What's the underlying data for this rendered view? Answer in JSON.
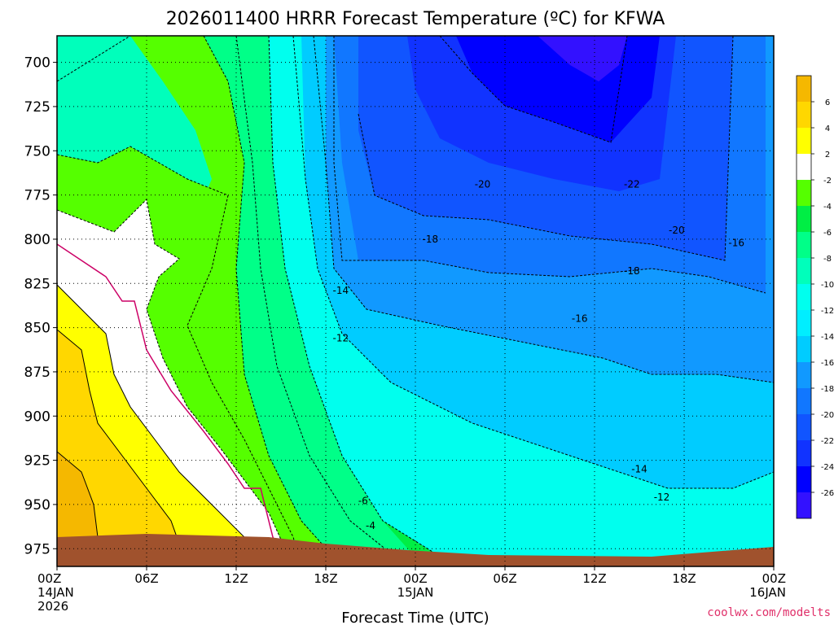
{
  "chart_data": {
    "type": "contour",
    "title": "2026011400 HRRR Forecast Temperature (ºC) for KFWA",
    "xlabel": "Forecast Time (UTC)",
    "x_ticks": [
      {
        "hour": 0,
        "label": "00Z",
        "sub": [
          "14JAN",
          "2026"
        ]
      },
      {
        "hour": 6,
        "label": "06Z",
        "sub": []
      },
      {
        "hour": 12,
        "label": "12Z",
        "sub": []
      },
      {
        "hour": 18,
        "label": "18Z",
        "sub": []
      },
      {
        "hour": 24,
        "label": "00Z",
        "sub": [
          "15JAN"
        ]
      },
      {
        "hour": 30,
        "label": "06Z",
        "sub": []
      },
      {
        "hour": 36,
        "label": "12Z",
        "sub": []
      },
      {
        "hour": 42,
        "label": "18Z",
        "sub": []
      },
      {
        "hour": 48,
        "label": "00Z",
        "sub": [
          "16JAN"
        ]
      }
    ],
    "xlim": [
      0,
      48
    ],
    "y_ticks": [
      700,
      725,
      750,
      775,
      800,
      825,
      850,
      875,
      900,
      925,
      950,
      975
    ],
    "ylim": [
      985,
      685
    ],
    "grid": true,
    "colorbar": {
      "labels": [
        "6",
        "4",
        "2",
        "-2",
        "-4",
        "-6",
        "-8",
        "-10",
        "-12",
        "-14",
        "-16",
        "-18",
        "-20",
        "-22",
        "-24",
        "-26"
      ],
      "colors": [
        "#f5b800",
        "#ffd700",
        "#ffff00",
        "#ffffff",
        "#55ff00",
        "#00ee44",
        "#00ff88",
        "#00ffbb",
        "#00ffee",
        "#00eeff",
        "#00ccff",
        "#1199ff",
        "#1177ff",
        "#1155ff",
        "#1133ff",
        "#0000ff",
        "#3311ff"
      ]
    },
    "contour_labels": [
      {
        "label": "-20",
        "hour": 28.5,
        "p": 769
      },
      {
        "label": "-22",
        "hour": 38.5,
        "p": 769
      },
      {
        "label": "-20",
        "hour": 41.5,
        "p": 795
      },
      {
        "label": "-18",
        "hour": 25,
        "p": 800
      },
      {
        "label": "-16",
        "hour": 45.5,
        "p": 802
      },
      {
        "label": "-18",
        "hour": 38.5,
        "p": 818
      },
      {
        "label": "-14",
        "hour": 19,
        "p": 829
      },
      {
        "label": "-16",
        "hour": 35,
        "p": 845
      },
      {
        "label": "-12",
        "hour": 19,
        "p": 856
      },
      {
        "label": "-14",
        "hour": 39,
        "p": 930
      },
      {
        "label": "-12",
        "hour": 40.5,
        "p": 946
      },
      {
        "label": "-6",
        "hour": 20.5,
        "p": 948
      },
      {
        "label": "-4",
        "hour": 21,
        "p": 962
      }
    ],
    "credit": "coolwx.com/modelts"
  }
}
